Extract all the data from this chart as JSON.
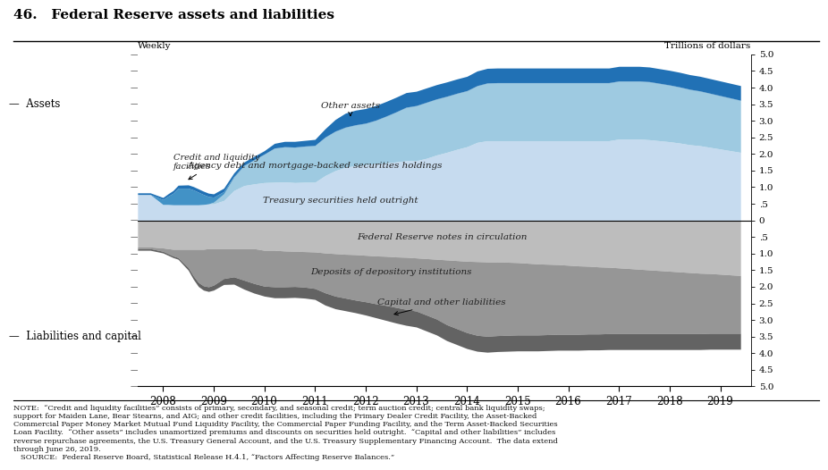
{
  "title": "46.   Federal Reserve assets and liabilities",
  "ylim": [
    -5.0,
    5.0
  ],
  "yticks_pos": [
    5.0,
    4.5,
    4.0,
    3.5,
    3.0,
    2.5,
    2.0,
    1.5,
    1.0,
    0.5,
    0.0,
    -0.5,
    -1.0,
    -1.5,
    -2.0,
    -2.5,
    -3.0,
    -3.5,
    -4.0,
    -4.5,
    -5.0
  ],
  "ytick_labels_right": [
    "5.0",
    "4.5",
    "4.0",
    "3.5",
    "3.0",
    "2.5",
    "2.0",
    "1.5",
    "1.0",
    ".5",
    "0",
    ".5",
    "1.0",
    "1.5",
    "2.0",
    "2.5",
    "3.0",
    "3.5",
    "4.0",
    "4.5",
    "5.0"
  ],
  "years": [
    2007.5,
    2007.75,
    2008.0,
    2008.1,
    2008.2,
    2008.3,
    2008.5,
    2008.6,
    2008.7,
    2008.8,
    2008.9,
    2009.0,
    2009.2,
    2009.4,
    2009.6,
    2009.8,
    2010.0,
    2010.2,
    2010.4,
    2010.6,
    2010.8,
    2011.0,
    2011.2,
    2011.4,
    2011.6,
    2011.8,
    2012.0,
    2012.2,
    2012.4,
    2012.6,
    2012.8,
    2013.0,
    2013.2,
    2013.4,
    2013.6,
    2013.8,
    2014.0,
    2014.2,
    2014.4,
    2014.6,
    2014.8,
    2015.0,
    2015.2,
    2015.4,
    2015.6,
    2015.8,
    2016.0,
    2016.2,
    2016.4,
    2016.6,
    2016.8,
    2017.0,
    2017.2,
    2017.4,
    2017.6,
    2017.8,
    2018.0,
    2018.2,
    2018.4,
    2018.6,
    2018.8,
    2019.0,
    2019.2,
    2019.4
  ],
  "treasury": [
    0.78,
    0.78,
    0.48,
    0.48,
    0.47,
    0.47,
    0.47,
    0.47,
    0.47,
    0.48,
    0.5,
    0.5,
    0.6,
    0.9,
    1.05,
    1.1,
    1.14,
    1.15,
    1.16,
    1.14,
    1.15,
    1.15,
    1.35,
    1.5,
    1.6,
    1.65,
    1.68,
    1.71,
    1.73,
    1.76,
    1.8,
    1.8,
    1.87,
    1.97,
    2.05,
    2.14,
    2.22,
    2.35,
    2.4,
    2.4,
    2.4,
    2.4,
    2.4,
    2.4,
    2.4,
    2.4,
    2.4,
    2.4,
    2.4,
    2.4,
    2.4,
    2.45,
    2.45,
    2.45,
    2.43,
    2.4,
    2.37,
    2.33,
    2.28,
    2.25,
    2.2,
    2.15,
    2.1,
    2.05
  ],
  "agency": [
    0.0,
    0.0,
    0.0,
    0.0,
    0.0,
    0.0,
    0.0,
    0.0,
    0.0,
    0.0,
    0.0,
    0.05,
    0.2,
    0.4,
    0.6,
    0.72,
    0.85,
    1.02,
    1.05,
    1.06,
    1.08,
    1.1,
    1.15,
    1.18,
    1.2,
    1.22,
    1.24,
    1.3,
    1.4,
    1.5,
    1.6,
    1.65,
    1.68,
    1.68,
    1.68,
    1.68,
    1.68,
    1.7,
    1.73,
    1.74,
    1.74,
    1.74,
    1.74,
    1.74,
    1.74,
    1.74,
    1.74,
    1.74,
    1.74,
    1.74,
    1.74,
    1.74,
    1.74,
    1.74,
    1.74,
    1.72,
    1.7,
    1.68,
    1.66,
    1.64,
    1.62,
    1.6,
    1.58,
    1.56
  ],
  "credit": [
    0.0,
    0.0,
    0.15,
    0.25,
    0.35,
    0.5,
    0.5,
    0.45,
    0.38,
    0.3,
    0.22,
    0.15,
    0.07,
    0.03,
    0.01,
    0.01,
    0.01,
    0.01,
    0.01,
    0.01,
    0.01,
    0.01,
    0.01,
    0.01,
    0.01,
    0.01,
    0.01,
    0.01,
    0.01,
    0.01,
    0.01,
    0.01,
    0.01,
    0.01,
    0.01,
    0.01,
    0.01,
    0.01,
    0.01,
    0.01,
    0.01,
    0.01,
    0.01,
    0.01,
    0.01,
    0.01,
    0.01,
    0.01,
    0.01,
    0.01,
    0.01,
    0.01,
    0.01,
    0.01,
    0.01,
    0.01,
    0.01,
    0.01,
    0.01,
    0.01,
    0.01,
    0.01,
    0.01,
    0.01
  ],
  "other_assets": [
    0.05,
    0.05,
    0.06,
    0.07,
    0.08,
    0.09,
    0.1,
    0.1,
    0.1,
    0.1,
    0.1,
    0.1,
    0.1,
    0.1,
    0.1,
    0.1,
    0.1,
    0.14,
    0.16,
    0.17,
    0.17,
    0.18,
    0.25,
    0.35,
    0.42,
    0.44,
    0.44,
    0.44,
    0.44,
    0.44,
    0.44,
    0.43,
    0.43,
    0.43,
    0.43,
    0.43,
    0.43,
    0.44,
    0.44,
    0.44,
    0.44,
    0.44,
    0.44,
    0.44,
    0.44,
    0.44,
    0.44,
    0.44,
    0.44,
    0.44,
    0.44,
    0.44,
    0.44,
    0.44,
    0.44,
    0.44,
    0.44,
    0.44,
    0.44,
    0.44,
    0.44,
    0.44,
    0.44,
    0.44
  ],
  "fed_notes": [
    -0.8,
    -0.8,
    -0.83,
    -0.85,
    -0.87,
    -0.87,
    -0.87,
    -0.87,
    -0.87,
    -0.87,
    -0.85,
    -0.85,
    -0.85,
    -0.85,
    -0.85,
    -0.85,
    -0.9,
    -0.9,
    -0.92,
    -0.93,
    -0.94,
    -0.95,
    -0.98,
    -1.0,
    -1.02,
    -1.03,
    -1.05,
    -1.07,
    -1.08,
    -1.1,
    -1.11,
    -1.13,
    -1.15,
    -1.17,
    -1.19,
    -1.21,
    -1.23,
    -1.24,
    -1.25,
    -1.25,
    -1.26,
    -1.27,
    -1.29,
    -1.31,
    -1.32,
    -1.33,
    -1.35,
    -1.37,
    -1.38,
    -1.4,
    -1.41,
    -1.43,
    -1.45,
    -1.47,
    -1.49,
    -1.51,
    -1.53,
    -1.55,
    -1.57,
    -1.59,
    -1.6,
    -1.62,
    -1.64,
    -1.66
  ],
  "deposits": [
    -0.05,
    -0.05,
    -0.1,
    -0.15,
    -0.2,
    -0.25,
    -0.55,
    -0.8,
    -1.0,
    -1.1,
    -1.15,
    -1.1,
    -0.9,
    -0.85,
    -0.95,
    -1.05,
    -1.08,
    -1.1,
    -1.08,
    -1.06,
    -1.07,
    -1.1,
    -1.2,
    -1.28,
    -1.32,
    -1.37,
    -1.4,
    -1.44,
    -1.48,
    -1.52,
    -1.57,
    -1.6,
    -1.7,
    -1.8,
    -1.95,
    -2.05,
    -2.15,
    -2.22,
    -2.24,
    -2.22,
    -2.2,
    -2.18,
    -2.16,
    -2.14,
    -2.12,
    -2.1,
    -2.08,
    -2.06,
    -2.04,
    -2.02,
    -2.0,
    -1.98,
    -1.96,
    -1.94,
    -1.92,
    -1.9,
    -1.88,
    -1.86,
    -1.84,
    -1.82,
    -1.8,
    -1.78,
    -1.76,
    -1.74
  ],
  "capital": [
    -0.05,
    -0.05,
    -0.05,
    -0.05,
    -0.05,
    -0.05,
    -0.08,
    -0.1,
    -0.12,
    -0.13,
    -0.14,
    -0.15,
    -0.18,
    -0.22,
    -0.27,
    -0.29,
    -0.3,
    -0.33,
    -0.33,
    -0.33,
    -0.33,
    -0.33,
    -0.37,
    -0.38,
    -0.38,
    -0.38,
    -0.4,
    -0.42,
    -0.45,
    -0.47,
    -0.48,
    -0.48,
    -0.48,
    -0.48,
    -0.48,
    -0.48,
    -0.48,
    -0.48,
    -0.48,
    -0.48,
    -0.48,
    -0.48,
    -0.48,
    -0.48,
    -0.48,
    -0.48,
    -0.48,
    -0.48,
    -0.48,
    -0.48,
    -0.48,
    -0.48,
    -0.48,
    -0.48,
    -0.48,
    -0.48,
    -0.48,
    -0.48,
    -0.48,
    -0.48,
    -0.48,
    -0.48,
    -0.48,
    -0.48
  ],
  "colors": {
    "treasury": "#c6dbef",
    "agency": "#9ecae1",
    "credit": "#4292c6",
    "other_assets": "#2171b5",
    "fed_notes": "#bdbdbd",
    "deposits": "#969696",
    "capital": "#636363"
  },
  "label_treasury": "Treasury securities held outright",
  "label_agency": "Agency debt and mortgage-backed securities holdings",
  "label_credit": "Credit and liquidity\nfacilities",
  "label_other": "Other assets",
  "label_notes": "Federal Reserve notes in circulation",
  "label_deposits": "Deposits of depository institutions",
  "label_capital": "Capital and other liabilities",
  "annotation_assets": "Assets",
  "annotation_liabilities": "Liabilities and capital",
  "bg_color": "#ffffff",
  "xtick_years": [
    2008,
    2009,
    2010,
    2011,
    2012,
    2013,
    2014,
    2015,
    2016,
    2017,
    2018,
    2019
  ],
  "note_text": "NOTE:  “Credit and liquidity facilities” consists of primary, secondary, and seasonal credit; term auction credit; central bank liquidity swaps;\nsupport for Maiden Lane, Bear Stearns, and AIG; and other credit facilities, including the Primary Dealer Credit Facility, the Asset-Backed\nCommercial Paper Money Market Mutual Fund Liquidity Facility, the Commercial Paper Funding Facility, and the Term Asset-Backed Securities\nLoan Facility.  “Other assets” includes unamortized premiums and discounts on securities held outright.  “Capital and other liabilities” includes\nreverse repurchase agreements, the U.S. Treasury General Account, and the U.S. Treasury Supplementary Financing Account.  The data extend\nthrough June 26, 2019.\n   SOURCE:  Federal Reserve Board, Statistical Release H.4.1, “Factors Affecting Reserve Balances.”"
}
